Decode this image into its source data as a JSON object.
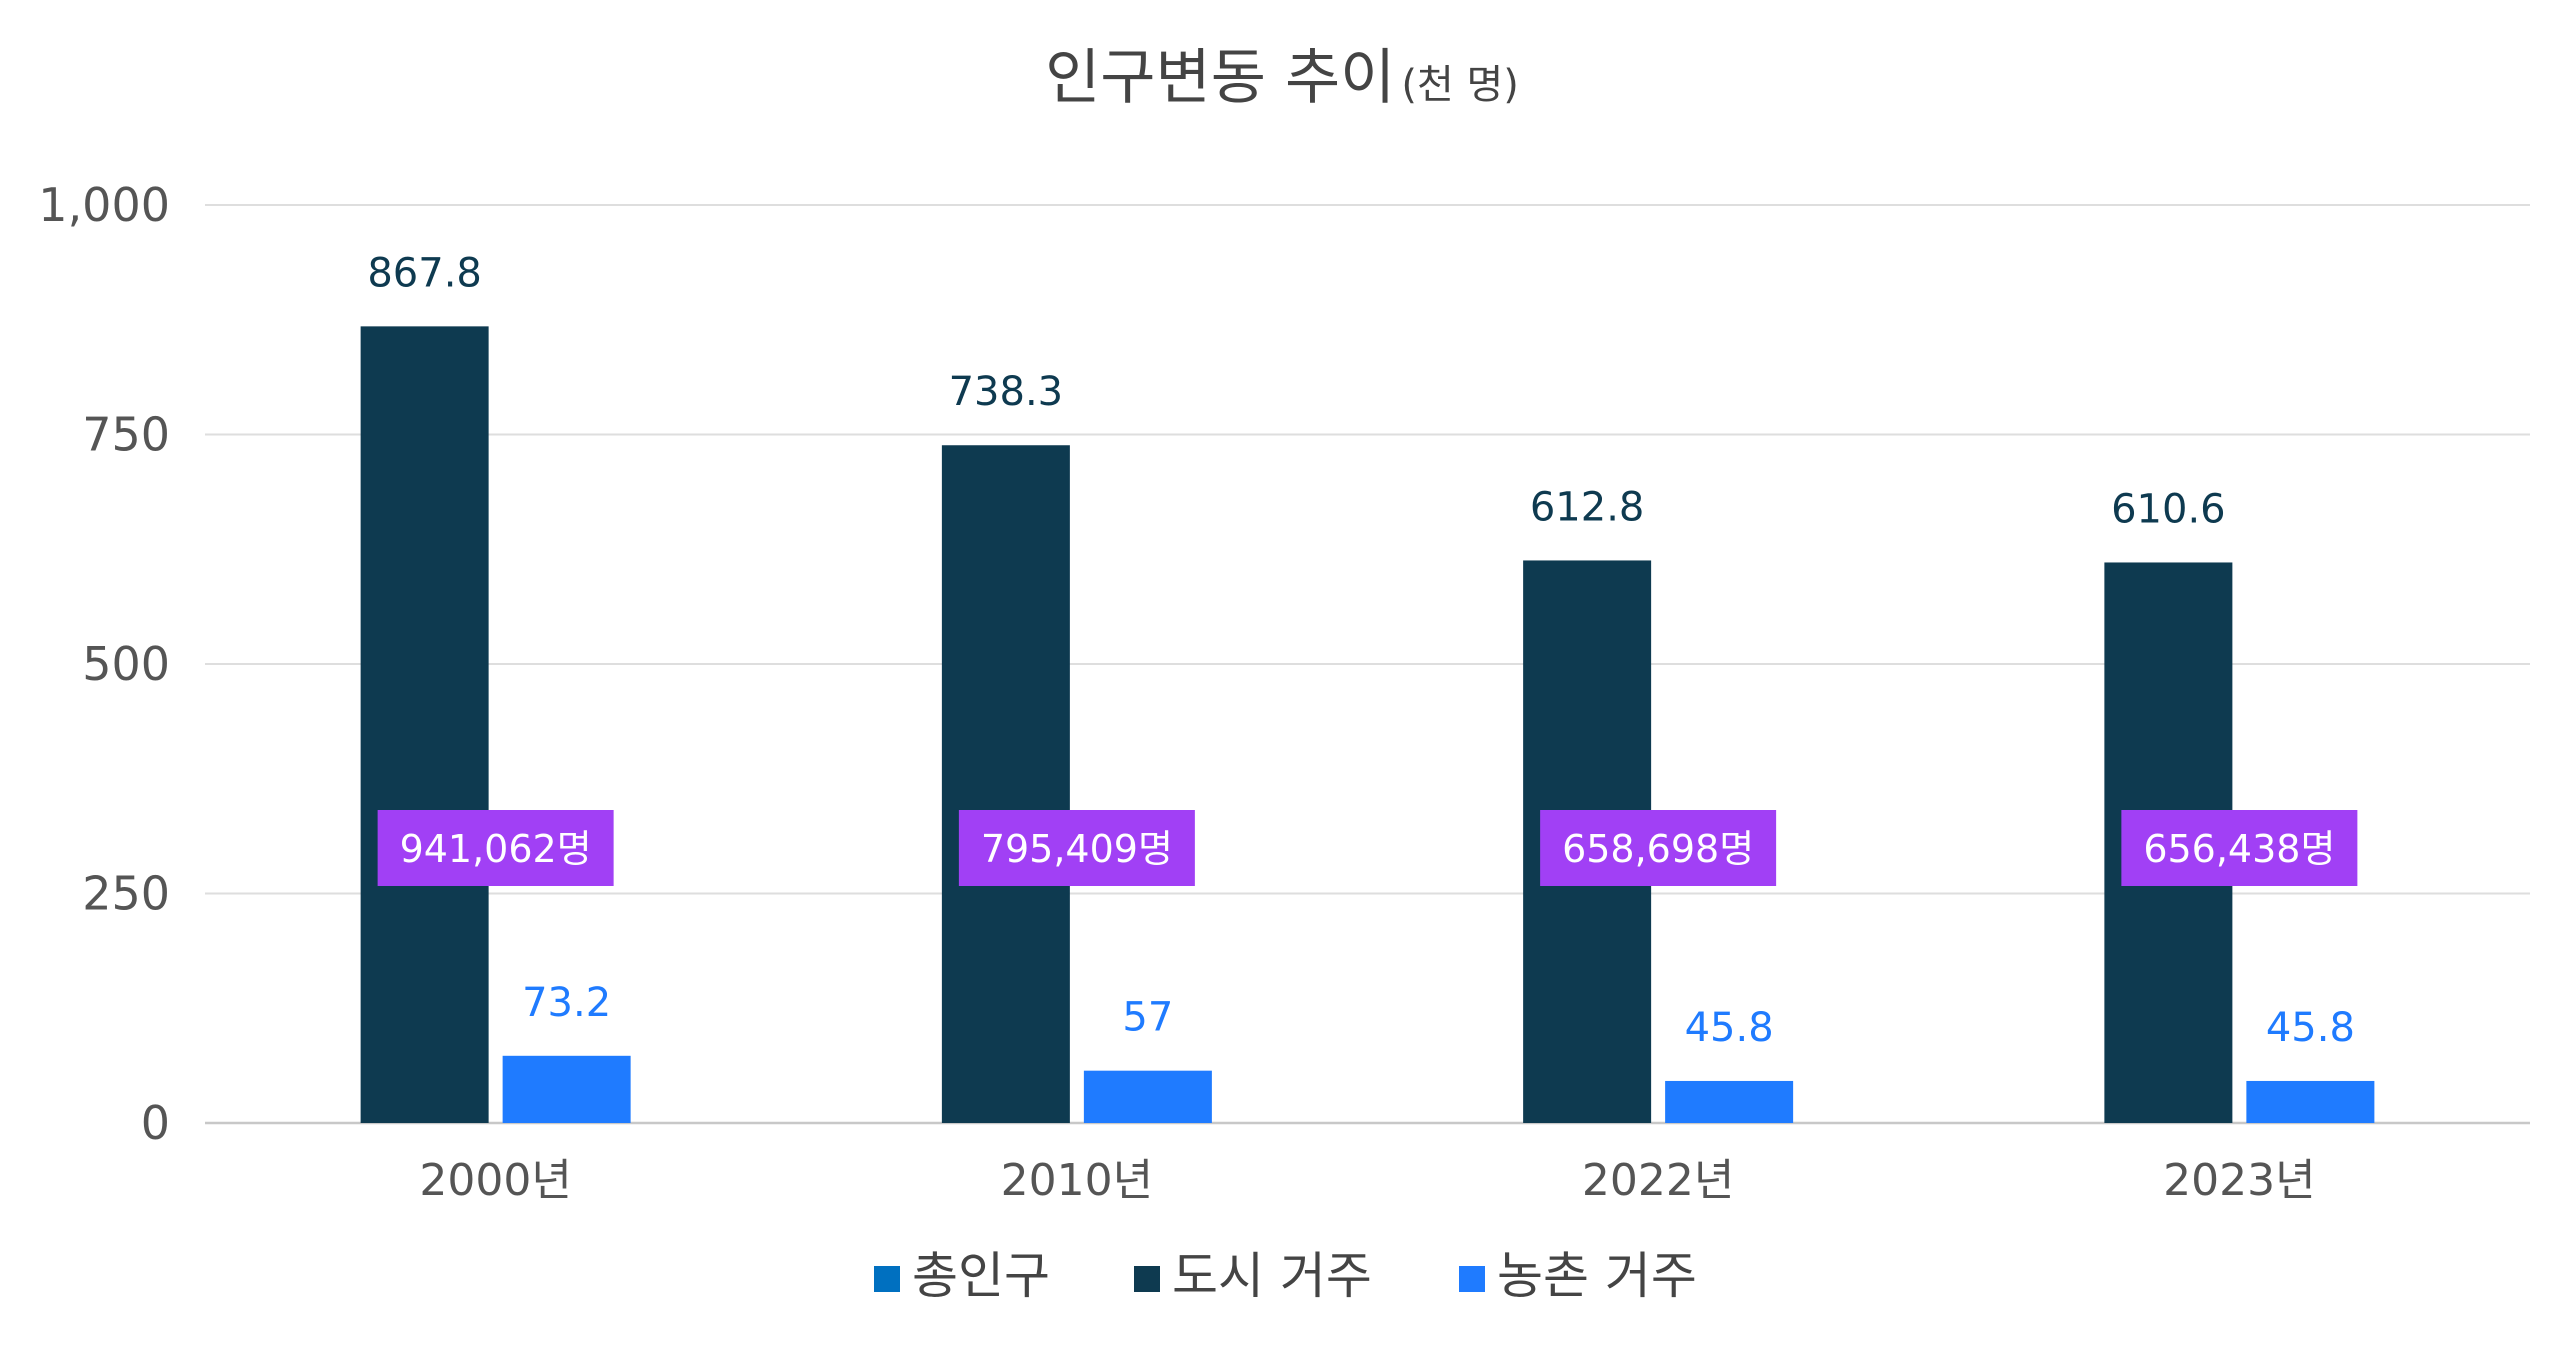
{
  "chart_data": {
    "type": "bar",
    "title": "인구변동 추이",
    "title_unit": "(천 명)",
    "categories": [
      "2000년",
      "2010년",
      "2022년",
      "2023년"
    ],
    "series": [
      {
        "name": "총인구",
        "color": "#0070C0",
        "values": [
          941.062,
          795.409,
          658.698,
          656.438
        ],
        "labels": [
          "941,062명",
          "795,409명",
          "658,698명",
          "656,438명"
        ],
        "label_bg": "#A140F5",
        "drawn": false
      },
      {
        "name": "도시 거주",
        "color": "#0E3A50",
        "values": [
          867.8,
          738.3,
          612.8,
          610.6
        ],
        "labels": [
          "867.8",
          "738.3",
          "612.8",
          "610.6"
        ],
        "label_color": "#0E3A50",
        "drawn": true
      },
      {
        "name": "농촌 거주",
        "color": "#1F7BFF",
        "values": [
          73.2,
          57,
          45.8,
          45.8
        ],
        "labels": [
          "73.2",
          "57",
          "45.8",
          "45.8"
        ],
        "label_color": "#1F7BFF",
        "drawn": true
      }
    ],
    "ylim": [
      0,
      1000
    ],
    "yticks": [
      0,
      250,
      500,
      750,
      1000
    ],
    "ytick_labels": [
      "0",
      "250",
      "500",
      "750",
      "1,000"
    ],
    "grid": true,
    "legend_position": "bottom"
  }
}
